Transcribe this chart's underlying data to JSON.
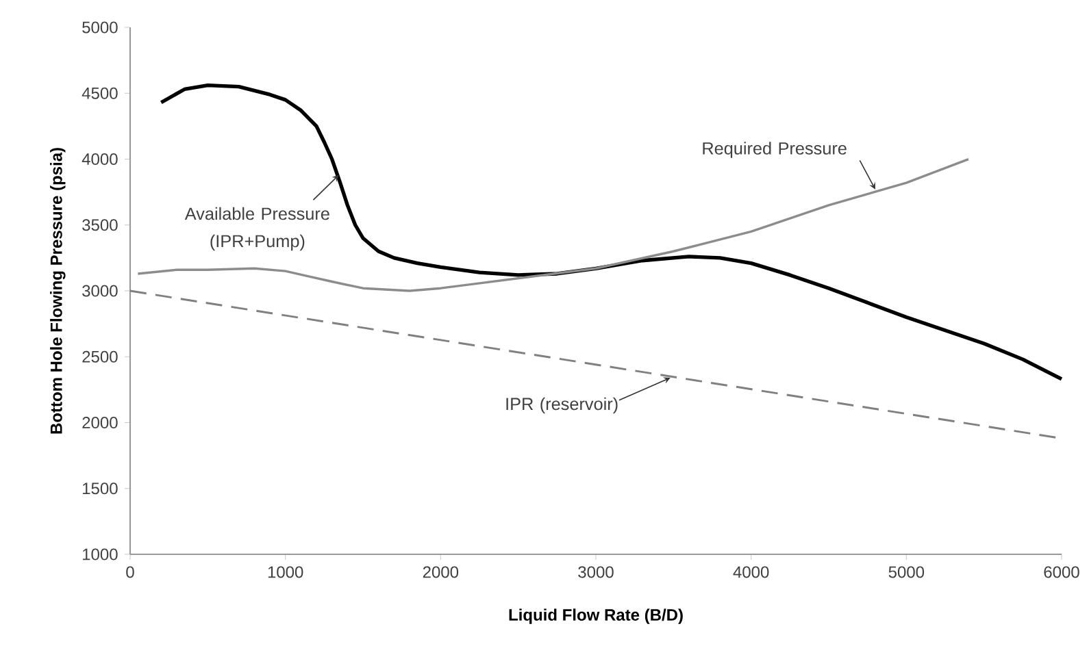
{
  "chart_data": {
    "type": "line",
    "xlabel": "Liquid Flow Rate (B/D)",
    "ylabel": "Bottom Hole Flowing Pressure (psia)",
    "xlim": [
      0,
      6000
    ],
    "ylim": [
      1000,
      5000
    ],
    "xticks": [
      0,
      1000,
      2000,
      3000,
      4000,
      5000,
      6000
    ],
    "yticks": [
      1000,
      1500,
      2000,
      2500,
      3000,
      3500,
      4000,
      4500,
      5000
    ],
    "series": [
      {
        "name": "Available Pressure (IPR+Pump)",
        "color": "#000000",
        "line_style": "solid",
        "x": [
          200,
          350,
          500,
          700,
          900,
          1000,
          1100,
          1200,
          1250,
          1300,
          1350,
          1400,
          1450,
          1500,
          1600,
          1700,
          1850,
          2000,
          2250,
          2500,
          2750,
          3000,
          3300,
          3600,
          3800,
          4000,
          4250,
          4500,
          4750,
          5000,
          5250,
          5500,
          5750,
          6000
        ],
        "values": [
          4430,
          4530,
          4560,
          4550,
          4490,
          4450,
          4370,
          4250,
          4130,
          4000,
          3830,
          3650,
          3500,
          3400,
          3300,
          3250,
          3210,
          3180,
          3140,
          3120,
          3130,
          3170,
          3230,
          3260,
          3250,
          3210,
          3120,
          3020,
          2910,
          2800,
          2700,
          2600,
          2480,
          2330
        ]
      },
      {
        "name": "Required Pressure",
        "color": "#8c8c8c",
        "line_style": "solid",
        "x": [
          50,
          300,
          500,
          800,
          1000,
          1150,
          1300,
          1500,
          1800,
          2000,
          2200,
          2600,
          3000,
          3500,
          4000,
          4500,
          5000,
          5400
        ],
        "values": [
          3130,
          3160,
          3160,
          3170,
          3150,
          3110,
          3070,
          3020,
          3000,
          3020,
          3050,
          3110,
          3170,
          3300,
          3450,
          3650,
          3820,
          4000
        ]
      },
      {
        "name": "IPR (reservoir)",
        "color": "#808080",
        "line_style": "dashed",
        "x": [
          0,
          6000
        ],
        "values": [
          3000,
          1880
        ]
      }
    ]
  }
}
